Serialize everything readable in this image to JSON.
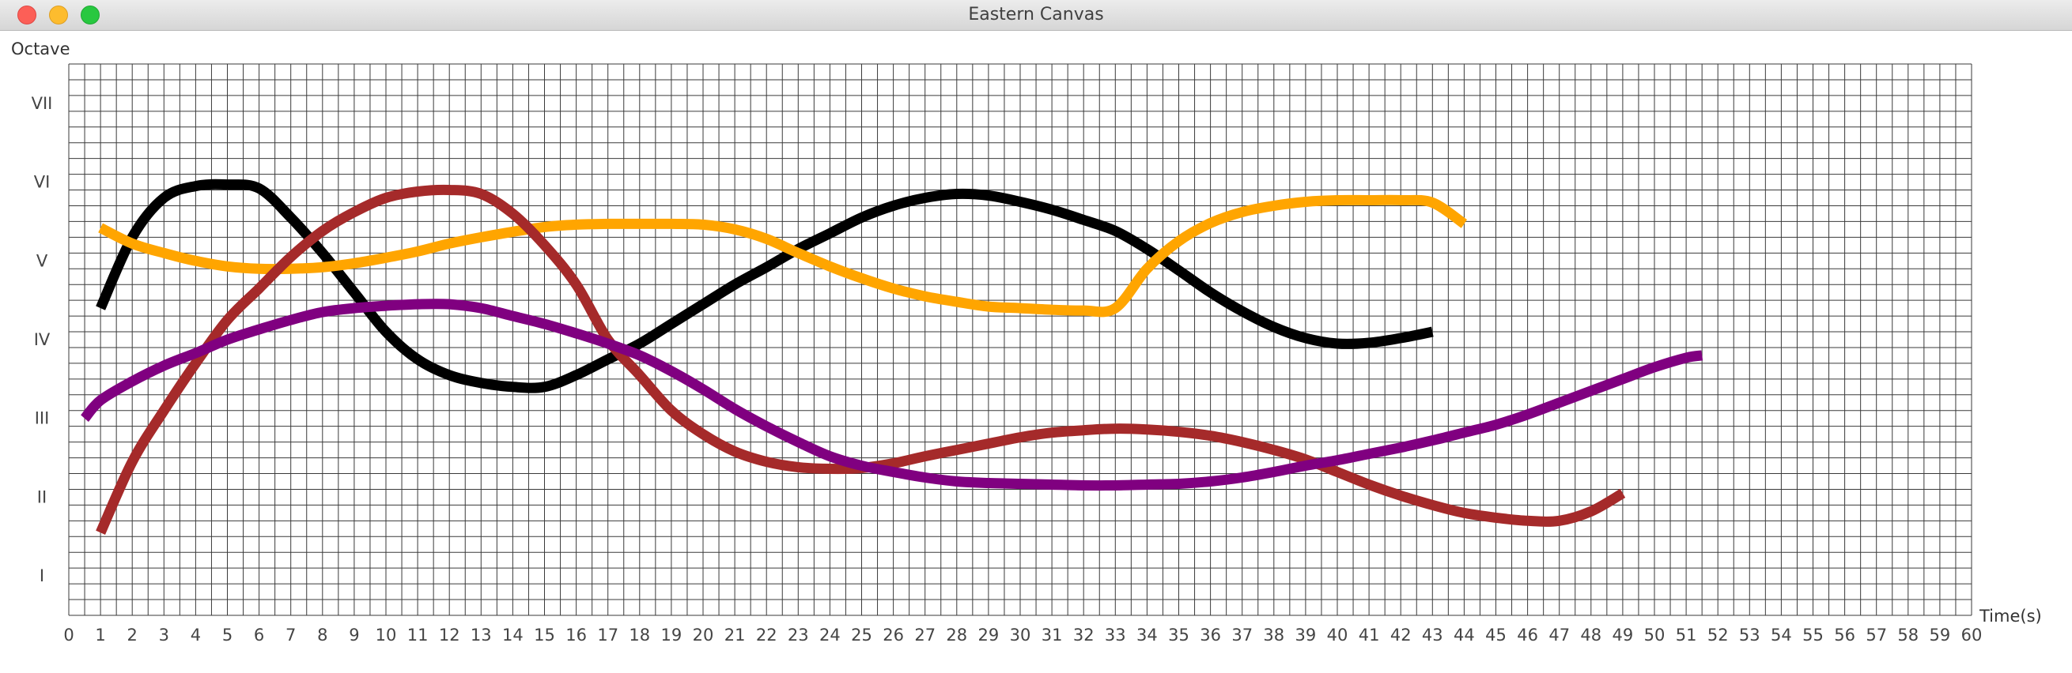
{
  "window": {
    "title": "Eastern Canvas"
  },
  "chart_data": {
    "type": "line",
    "title": "",
    "xlabel": "Time(s)",
    "ylabel": "Octave",
    "xlim": [
      0,
      60
    ],
    "ylim": [
      0,
      7
    ],
    "grid": true,
    "x_ticks": [
      "0",
      "1",
      "2",
      "3",
      "4",
      "5",
      "6",
      "7",
      "8",
      "9",
      "10",
      "11",
      "12",
      "13",
      "14",
      "15",
      "16",
      "17",
      "18",
      "19",
      "20",
      "21",
      "22",
      "23",
      "24",
      "25",
      "26",
      "27",
      "28",
      "29",
      "30",
      "31",
      "32",
      "33",
      "34",
      "35",
      "36",
      "37",
      "38",
      "39",
      "40",
      "41",
      "42",
      "43",
      "44",
      "45",
      "46",
      "47",
      "48",
      "49",
      "50",
      "51",
      "52",
      "53",
      "54",
      "55",
      "56",
      "57",
      "58",
      "59",
      "60"
    ],
    "y_ticks": [
      {
        "value": 0.5,
        "label": "I"
      },
      {
        "value": 1.5,
        "label": "II"
      },
      {
        "value": 2.5,
        "label": "III"
      },
      {
        "value": 3.5,
        "label": "IV"
      },
      {
        "value": 4.5,
        "label": "V"
      },
      {
        "value": 5.5,
        "label": "VI"
      },
      {
        "value": 6.5,
        "label": "VII"
      }
    ],
    "series": [
      {
        "color": "#000000",
        "x": [
          1,
          2,
          3,
          4,
          5,
          6,
          7,
          8,
          9,
          10,
          11,
          12,
          13,
          14,
          15,
          16,
          17,
          18,
          19,
          20,
          21,
          22,
          23,
          24,
          25,
          26,
          27,
          28,
          29,
          30,
          31,
          32,
          33,
          34,
          35,
          36,
          37,
          38,
          39,
          40,
          41,
          42,
          43
        ],
        "y": [
          3.9,
          4.8,
          5.3,
          5.45,
          5.47,
          5.42,
          5.05,
          4.6,
          4.1,
          3.6,
          3.25,
          3.05,
          2.95,
          2.9,
          2.9,
          3.05,
          3.25,
          3.45,
          3.7,
          3.95,
          4.2,
          4.42,
          4.65,
          4.85,
          5.05,
          5.2,
          5.3,
          5.35,
          5.33,
          5.25,
          5.15,
          5.02,
          4.88,
          4.65,
          4.38,
          4.1,
          3.86,
          3.66,
          3.52,
          3.45,
          3.46,
          3.52,
          3.6
        ]
      },
      {
        "color": "#ffa500",
        "x": [
          1,
          2,
          3,
          4,
          5,
          6,
          7,
          8,
          9,
          10,
          11,
          12,
          13,
          14,
          15,
          16,
          17,
          18,
          19,
          20,
          21,
          22,
          23,
          24,
          25,
          26,
          27,
          28,
          29,
          30,
          31,
          32,
          33,
          34,
          35,
          36,
          37,
          38,
          39,
          40,
          41,
          42,
          43,
          44
        ],
        "y": [
          4.92,
          4.72,
          4.6,
          4.5,
          4.43,
          4.4,
          4.4,
          4.42,
          4.47,
          4.54,
          4.62,
          4.72,
          4.8,
          4.87,
          4.93,
          4.96,
          4.97,
          4.97,
          4.97,
          4.96,
          4.9,
          4.78,
          4.6,
          4.43,
          4.28,
          4.15,
          4.05,
          3.98,
          3.92,
          3.9,
          3.88,
          3.87,
          3.9,
          4.4,
          4.75,
          4.98,
          5.12,
          5.2,
          5.25,
          5.27,
          5.27,
          5.27,
          5.24,
          4.97
        ]
      },
      {
        "color": "#a52a2a",
        "x": [
          1,
          2,
          3,
          4,
          5,
          6,
          7,
          8,
          9,
          10,
          11,
          12,
          13,
          14,
          15,
          16,
          17,
          18,
          19,
          20,
          21,
          22,
          23,
          24,
          25,
          26,
          27,
          28,
          29,
          30,
          31,
          32,
          33,
          34,
          35,
          36,
          37,
          38,
          39,
          40,
          41,
          42,
          43,
          44,
          45,
          46,
          47,
          48,
          49
        ],
        "y": [
          1.05,
          1.95,
          2.6,
          3.2,
          3.75,
          4.15,
          4.55,
          4.88,
          5.12,
          5.3,
          5.38,
          5.4,
          5.35,
          5.1,
          4.7,
          4.2,
          3.5,
          3.05,
          2.6,
          2.3,
          2.08,
          1.95,
          1.88,
          1.86,
          1.87,
          1.93,
          2.02,
          2.1,
          2.18,
          2.26,
          2.32,
          2.35,
          2.37,
          2.36,
          2.33,
          2.28,
          2.2,
          2.1,
          1.98,
          1.82,
          1.66,
          1.52,
          1.4,
          1.3,
          1.24,
          1.2,
          1.2,
          1.32,
          1.55
        ]
      },
      {
        "color": "#800080",
        "x": [
          0.5,
          1,
          2,
          3,
          4,
          5,
          6,
          7,
          8,
          9,
          10,
          11,
          12,
          13,
          14,
          15,
          16,
          17,
          18,
          19,
          20,
          21,
          22,
          23,
          24,
          25,
          26,
          27,
          28,
          29,
          30,
          31,
          32,
          33,
          34,
          35,
          36,
          37,
          38,
          39,
          40,
          41,
          42,
          43,
          44,
          45,
          46,
          47,
          48,
          49,
          50,
          51,
          51.5
        ],
        "y": [
          2.5,
          2.73,
          2.97,
          3.17,
          3.33,
          3.5,
          3.63,
          3.75,
          3.85,
          3.9,
          3.93,
          3.95,
          3.95,
          3.9,
          3.8,
          3.7,
          3.58,
          3.45,
          3.3,
          3.1,
          2.87,
          2.62,
          2.4,
          2.2,
          2.02,
          1.9,
          1.82,
          1.75,
          1.7,
          1.68,
          1.67,
          1.66,
          1.65,
          1.65,
          1.66,
          1.67,
          1.7,
          1.75,
          1.82,
          1.9,
          1.97,
          2.05,
          2.13,
          2.22,
          2.32,
          2.42,
          2.55,
          2.7,
          2.85,
          3.0,
          3.15,
          3.27,
          3.3
        ]
      }
    ]
  }
}
